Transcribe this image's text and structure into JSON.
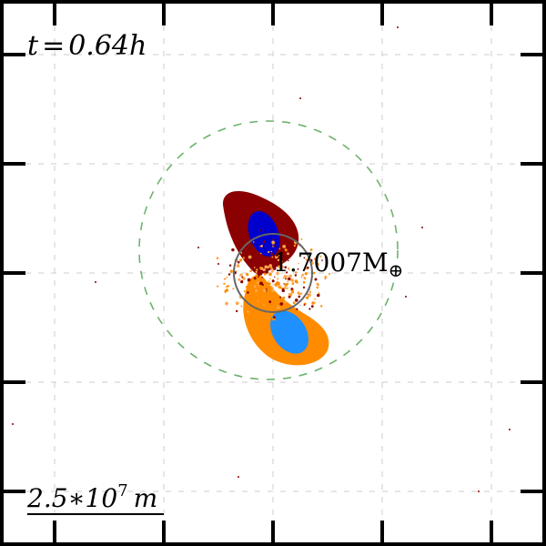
{
  "time_label": "t = 0.64h",
  "time_var": "t",
  "time_eq": "=",
  "time_value": "0.64h",
  "mass_label": "1.7007M",
  "mass_symbol": "⊕",
  "scale_label": "2.5∗10",
  "scale_exponent": "7",
  "scale_unit": "m",
  "colors": {
    "frame": "#000000",
    "grid": "#cccccc",
    "dark_red_body": "#8b0000",
    "dark_blue_core": "#0000cd",
    "orange_body": "#ff8c00",
    "light_blue_core": "#1e90ff",
    "debris_orange": "#ffa64d",
    "roche_circle": "#6db36d",
    "ring": "#666666"
  }
}
